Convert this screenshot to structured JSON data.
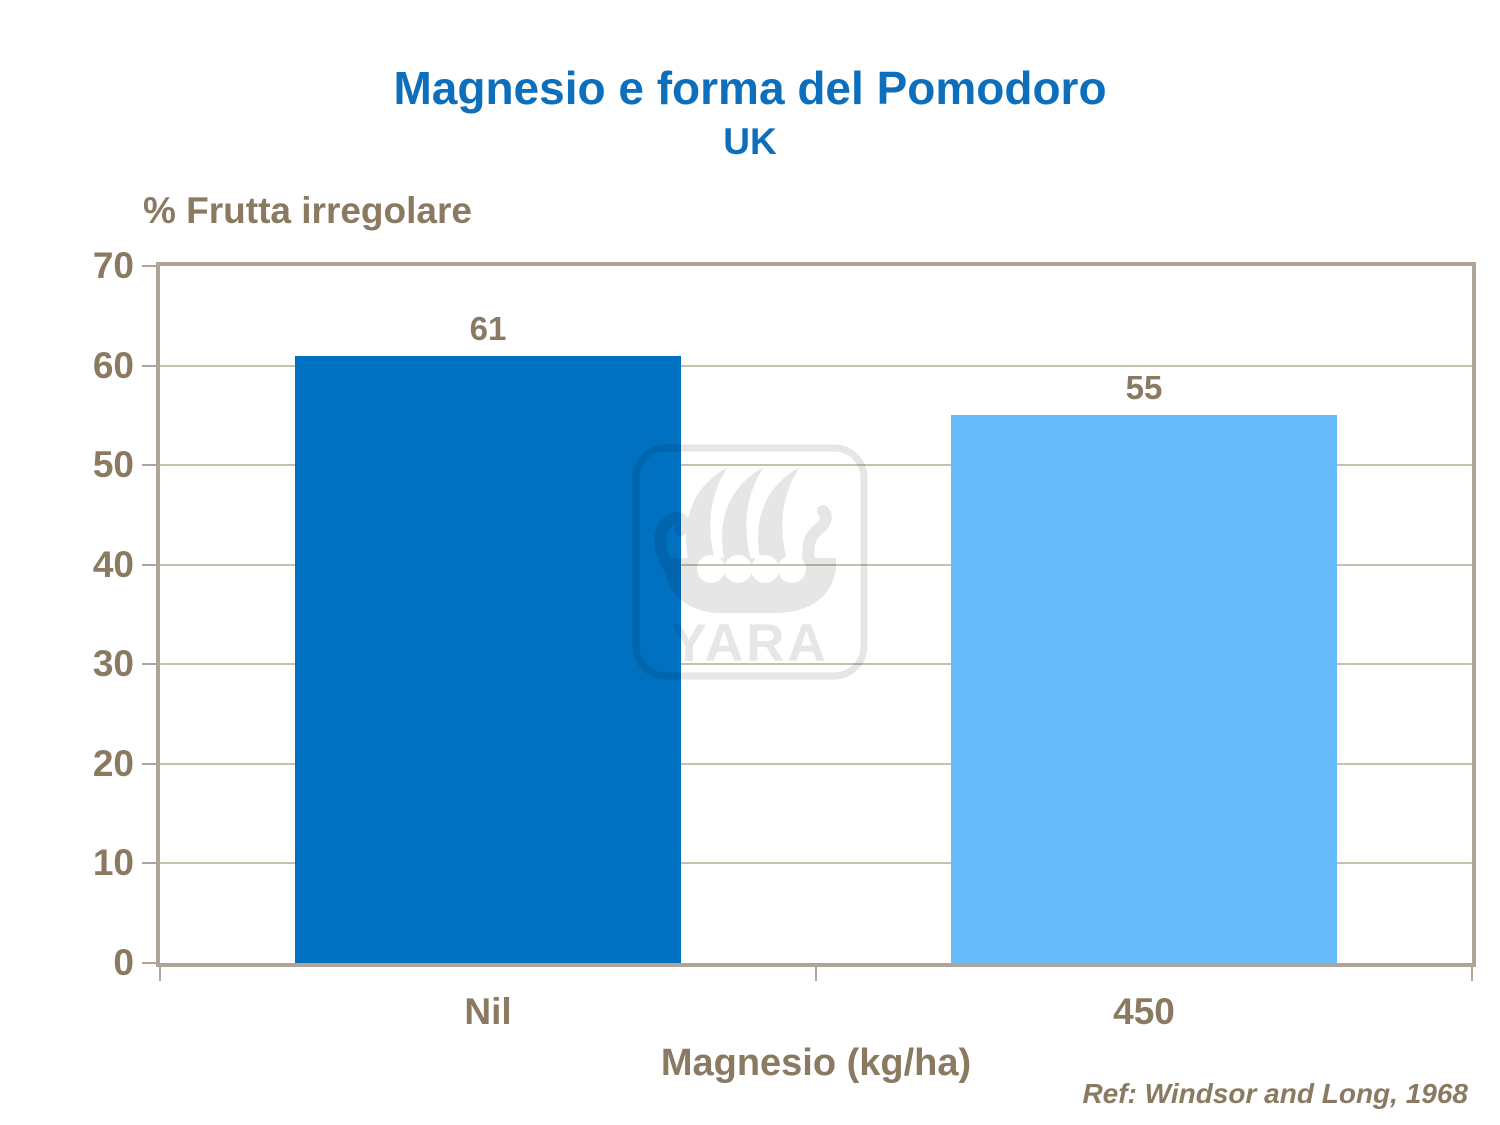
{
  "slide": {
    "title": "Magnesio e forma del Pomodoro",
    "subtitle": "UK",
    "reference": "Ref: Windsor and Long, 1968"
  },
  "chart_data": {
    "type": "bar",
    "title": "Magnesio e forma del Pomodoro",
    "subtitle": "UK",
    "categories": [
      "Nil",
      "450"
    ],
    "values": [
      61,
      55
    ],
    "bar_colors": [
      "#0070C0",
      "#66BBF9"
    ],
    "ylabel": "% Frutta irregolare",
    "xlabel": "Magnesio (kg/ha)",
    "ylim": [
      0,
      70
    ],
    "yticks": [
      0,
      10,
      20,
      30,
      40,
      50,
      60,
      70
    ],
    "grid": true,
    "legend": false,
    "annotation": "Ref: Windsor and Long, 1968"
  },
  "watermark": {
    "icon": "yara-viking-ship-logo",
    "text": "YARA"
  },
  "colors": {
    "title_blue": "#0D6FBC",
    "text_brown": "#8A7A62",
    "axis_line": "#AEA498",
    "gridline": "#C9BFB1",
    "bar_dark_blue": "#0070C0",
    "bar_light_blue": "#66BBF9",
    "watermark_gray": "#E6E6E6"
  }
}
